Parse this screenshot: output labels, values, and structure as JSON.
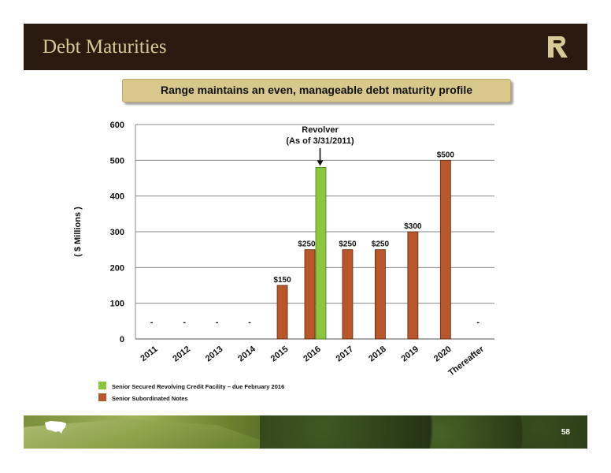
{
  "header": {
    "title": "Debt Maturities"
  },
  "subtitle": "Range maintains an even, manageable debt maturity profile",
  "footer": {
    "page_number": "58"
  },
  "colors": {
    "revolver": "#8cc63f",
    "notes": "#b9572b",
    "header_bg": "#2a1a10",
    "title_text": "#d7c996",
    "subtitle_bg": "#d8c88c"
  },
  "icons": {
    "logo": "range-r-logo-icon",
    "us_map": "us-map-icon"
  },
  "chart_data": {
    "type": "bar",
    "categories": [
      "2011",
      "2012",
      "2013",
      "2014",
      "2015",
      "2016",
      "2017",
      "2018",
      "2019",
      "2020",
      "Thereafter"
    ],
    "series": [
      {
        "name": "Senior Secured Revolving Credit Facility – due February 2016",
        "values": [
          null,
          null,
          null,
          null,
          null,
          480,
          null,
          null,
          null,
          null,
          null
        ]
      },
      {
        "name": "Senior Subordinated Notes",
        "values": [
          null,
          null,
          null,
          null,
          150,
          250,
          250,
          250,
          300,
          500,
          null
        ]
      }
    ],
    "data_labels": [
      "-",
      "-",
      "-",
      "-",
      "$150",
      "$250",
      "$250",
      "$250",
      "$300",
      "$500",
      "-"
    ],
    "ylabel": "( $ Millions )",
    "yticks": [
      "0",
      "100",
      "200",
      "300",
      "400",
      "500",
      "600"
    ],
    "ylim": [
      0,
      600
    ],
    "grid": true,
    "annotation": {
      "line1": "Revolver",
      "line2": "(As of 3/31/2011)",
      "category": "2016"
    },
    "legend": {
      "placement": "bottom-left",
      "items": [
        {
          "label": "Senior Secured Revolving Credit Facility – due February 2016",
          "color": "#8cc63f"
        },
        {
          "label": "Senior Subordinated Notes",
          "color": "#b9572b"
        }
      ]
    }
  }
}
